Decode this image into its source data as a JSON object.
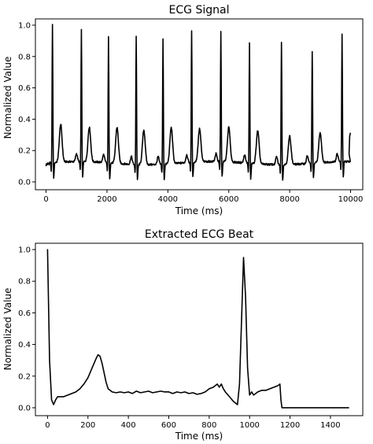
{
  "chart_data": [
    {
      "type": "line",
      "title": "ECG Signal",
      "xlabel": "Time (ms)",
      "ylabel": "Normalized Value",
      "xlim": [
        -350,
        10400
      ],
      "ylim": [
        -0.05,
        1.04
      ],
      "grid": false,
      "legend": "none",
      "color": "#000000",
      "xticks": [
        0,
        2000,
        4000,
        6000,
        8000,
        10000
      ],
      "xtick_labels": [
        "0",
        "2000",
        "4000",
        "6000",
        "8000",
        "10000"
      ],
      "yticks": [
        0.0,
        0.2,
        0.4,
        0.6,
        0.8,
        1.0
      ],
      "ytick_labels": [
        "0.0",
        "0.2",
        "0.4",
        "0.6",
        "0.8",
        "1.0"
      ],
      "r_peaks": [
        {
          "t": 210,
          "v": 1.0
        },
        {
          "t": 1160,
          "v": 0.96
        },
        {
          "t": 2050,
          "v": 0.93
        },
        {
          "t": 2960,
          "v": 0.94
        },
        {
          "t": 3840,
          "v": 0.92
        },
        {
          "t": 4780,
          "v": 0.96
        },
        {
          "t": 5740,
          "v": 0.95
        },
        {
          "t": 6680,
          "v": 0.89
        },
        {
          "t": 7730,
          "v": 0.9
        },
        {
          "t": 8740,
          "v": 0.84
        },
        {
          "t": 9720,
          "v": 0.94
        }
      ],
      "t_waves": [
        {
          "t": 480,
          "v": 0.36
        },
        {
          "t": 1420,
          "v": 0.34
        },
        {
          "t": 2330,
          "v": 0.35
        },
        {
          "t": 3210,
          "v": 0.34
        },
        {
          "t": 4110,
          "v": 0.35
        },
        {
          "t": 5040,
          "v": 0.33
        },
        {
          "t": 6000,
          "v": 0.34
        },
        {
          "t": 6950,
          "v": 0.33
        },
        {
          "t": 8000,
          "v": 0.3
        },
        {
          "t": 9000,
          "v": 0.31
        }
      ],
      "start": {
        "t": 0,
        "v": 0.11
      },
      "end": {
        "t": 9990,
        "v": 0.31
      },
      "baseline": 0.12
    },
    {
      "type": "line",
      "title": "Extracted ECG Beat",
      "xlabel": "Time (ms)",
      "ylabel": "Normalized Value",
      "xlim": [
        -60,
        1560
      ],
      "ylim": [
        -0.05,
        1.04
      ],
      "grid": false,
      "legend": "none",
      "color": "#000000",
      "xticks": [
        0,
        200,
        400,
        600,
        800,
        1000,
        1200,
        1400
      ],
      "xtick_labels": [
        "0",
        "200",
        "400",
        "600",
        "800",
        "1000",
        "1200",
        "1400"
      ],
      "yticks": [
        0.0,
        0.2,
        0.4,
        0.6,
        0.8,
        1.0
      ],
      "ytick_labels": [
        "0.0",
        "0.2",
        "0.4",
        "0.6",
        "0.8",
        "1.0"
      ],
      "x": [
        0,
        10,
        20,
        30,
        40,
        50,
        60,
        70,
        80,
        100,
        120,
        140,
        160,
        180,
        200,
        220,
        240,
        250,
        260,
        270,
        280,
        290,
        300,
        320,
        340,
        360,
        380,
        400,
        420,
        440,
        460,
        480,
        500,
        520,
        540,
        560,
        580,
        600,
        620,
        640,
        660,
        680,
        700,
        720,
        740,
        760,
        780,
        800,
        820,
        840,
        850,
        860,
        870,
        880,
        900,
        920,
        940,
        950,
        960,
        970,
        980,
        990,
        1000,
        1010,
        1020,
        1040,
        1060,
        1080,
        1100,
        1120,
        1140,
        1150,
        1155,
        1160,
        1200,
        1300,
        1400,
        1490
      ],
      "y": [
        1.0,
        0.3,
        0.05,
        0.02,
        0.05,
        0.07,
        0.07,
        0.07,
        0.07,
        0.08,
        0.09,
        0.1,
        0.12,
        0.15,
        0.19,
        0.25,
        0.31,
        0.335,
        0.325,
        0.28,
        0.22,
        0.16,
        0.12,
        0.1,
        0.095,
        0.1,
        0.095,
        0.1,
        0.09,
        0.105,
        0.095,
        0.1,
        0.105,
        0.095,
        0.1,
        0.105,
        0.1,
        0.1,
        0.09,
        0.1,
        0.095,
        0.1,
        0.09,
        0.095,
        0.085,
        0.09,
        0.1,
        0.12,
        0.13,
        0.15,
        0.13,
        0.15,
        0.12,
        0.1,
        0.07,
        0.04,
        0.02,
        0.15,
        0.55,
        0.95,
        0.7,
        0.25,
        0.08,
        0.1,
        0.08,
        0.1,
        0.11,
        0.11,
        0.12,
        0.13,
        0.14,
        0.15,
        0.05,
        0.0,
        0.0,
        0.0,
        0.0,
        0.0
      ]
    }
  ]
}
